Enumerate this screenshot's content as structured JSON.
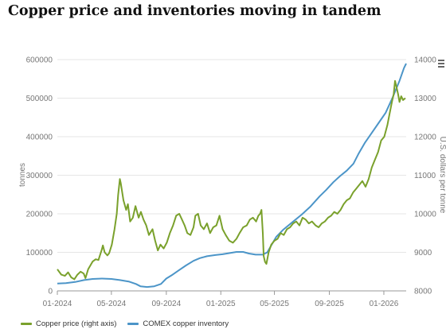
{
  "title": "Copper price and inventories moving in tandem",
  "colors": {
    "price": "#7aa12c",
    "inventory": "#4c95c8",
    "grid": "#e6e6e6",
    "axis_text": "#777777"
  },
  "legend": {
    "price": "Copper price (right axis)",
    "inventory": "COMEX copper inventory"
  },
  "icons": {
    "menu": "hamburger-menu-icon"
  },
  "chart_data": {
    "type": "line",
    "title": "Copper price and inventories moving in tandem",
    "ylabel_left": "tonnes",
    "ylabel_right": "U.S. dollars per tonne",
    "ylim_left": [
      0,
      600000
    ],
    "ylim_right": [
      8000,
      14000
    ],
    "yticks_left": [
      "0",
      "100000",
      "200000",
      "300000",
      "400000",
      "500000",
      "600000"
    ],
    "yticks_right": [
      "8000",
      "9000",
      "10000",
      "11000",
      "12000",
      "13000",
      "14000"
    ],
    "xlim": [
      "2024-01-01",
      "2026-02-20"
    ],
    "xticks": [
      {
        "label": "01-2024",
        "date": "2024-01-01"
      },
      {
        "label": "05-2024",
        "date": "2024-05-01"
      },
      {
        "label": "09-2024",
        "date": "2024-09-01"
      },
      {
        "label": "01-2025",
        "date": "2025-01-01"
      },
      {
        "label": "05-2025",
        "date": "2025-05-01"
      },
      {
        "label": "09-2025",
        "date": "2025-09-01"
      },
      {
        "label": "01-2026",
        "date": "2026-01-01"
      }
    ],
    "grid": true,
    "legend_position": "bottom-left",
    "series": [
      {
        "name": "Copper price (right axis)",
        "axis": "right",
        "points": [
          [
            "2024-01-01",
            8560
          ],
          [
            "2024-01-10",
            8420
          ],
          [
            "2024-01-18",
            8390
          ],
          [
            "2024-01-25",
            8480
          ],
          [
            "2024-02-01",
            8350
          ],
          [
            "2024-02-08",
            8300
          ],
          [
            "2024-02-15",
            8420
          ],
          [
            "2024-02-22",
            8500
          ],
          [
            "2024-02-29",
            8450
          ],
          [
            "2024-03-04",
            8330
          ],
          [
            "2024-03-10",
            8560
          ],
          [
            "2024-03-14",
            8640
          ],
          [
            "2024-03-20",
            8760
          ],
          [
            "2024-03-27",
            8820
          ],
          [
            "2024-04-02",
            8800
          ],
          [
            "2024-04-09",
            9050
          ],
          [
            "2024-04-12",
            9180
          ],
          [
            "2024-04-16",
            9000
          ],
          [
            "2024-04-22",
            8920
          ],
          [
            "2024-04-26",
            8980
          ],
          [
            "2024-05-02",
            9200
          ],
          [
            "2024-05-08",
            9600
          ],
          [
            "2024-05-13",
            10000
          ],
          [
            "2024-05-16",
            10480
          ],
          [
            "2024-05-20",
            10900
          ],
          [
            "2024-05-22",
            10800
          ],
          [
            "2024-05-28",
            10350
          ],
          [
            "2024-06-03",
            10100
          ],
          [
            "2024-06-07",
            10250
          ],
          [
            "2024-06-12",
            9800
          ],
          [
            "2024-06-18",
            9900
          ],
          [
            "2024-06-24",
            10200
          ],
          [
            "2024-07-01",
            9900
          ],
          [
            "2024-07-06",
            10050
          ],
          [
            "2024-07-12",
            9850
          ],
          [
            "2024-07-18",
            9700
          ],
          [
            "2024-07-24",
            9450
          ],
          [
            "2024-08-01",
            9600
          ],
          [
            "2024-08-07",
            9300
          ],
          [
            "2024-08-13",
            9050
          ],
          [
            "2024-08-19",
            9200
          ],
          [
            "2024-08-26",
            9100
          ],
          [
            "2024-09-02",
            9250
          ],
          [
            "2024-09-09",
            9500
          ],
          [
            "2024-09-16",
            9700
          ],
          [
            "2024-09-23",
            9950
          ],
          [
            "2024-09-30",
            10000
          ],
          [
            "2024-10-06",
            9850
          ],
          [
            "2024-10-12",
            9700
          ],
          [
            "2024-10-18",
            9500
          ],
          [
            "2024-10-25",
            9450
          ],
          [
            "2024-11-01",
            9650
          ],
          [
            "2024-11-05",
            9950
          ],
          [
            "2024-11-11",
            10000
          ],
          [
            "2024-11-17",
            9700
          ],
          [
            "2024-11-24",
            9600
          ],
          [
            "2024-12-01",
            9750
          ],
          [
            "2024-12-08",
            9500
          ],
          [
            "2024-12-15",
            9650
          ],
          [
            "2024-12-22",
            9700
          ],
          [
            "2024-12-29",
            9950
          ],
          [
            "2025-01-05",
            9600
          ],
          [
            "2025-01-12",
            9450
          ],
          [
            "2025-01-20",
            9300
          ],
          [
            "2025-01-28",
            9250
          ],
          [
            "2025-02-05",
            9350
          ],
          [
            "2025-02-12",
            9500
          ],
          [
            "2025-02-20",
            9650
          ],
          [
            "2025-02-28",
            9700
          ],
          [
            "2025-03-07",
            9850
          ],
          [
            "2025-03-14",
            9900
          ],
          [
            "2025-03-21",
            9800
          ],
          [
            "2025-03-26",
            9950
          ],
          [
            "2025-03-30",
            10000
          ],
          [
            "2025-04-02",
            10100
          ],
          [
            "2025-04-05",
            9500
          ],
          [
            "2025-04-07",
            8900
          ],
          [
            "2025-04-10",
            8750
          ],
          [
            "2025-04-13",
            8700
          ],
          [
            "2025-04-18",
            9000
          ],
          [
            "2025-04-24",
            9200
          ],
          [
            "2025-05-01",
            9300
          ],
          [
            "2025-05-08",
            9350
          ],
          [
            "2025-05-15",
            9500
          ],
          [
            "2025-05-22",
            9450
          ],
          [
            "2025-05-29",
            9600
          ],
          [
            "2025-06-05",
            9650
          ],
          [
            "2025-06-12",
            9750
          ],
          [
            "2025-06-19",
            9800
          ],
          [
            "2025-06-26",
            9700
          ],
          [
            "2025-07-03",
            9900
          ],
          [
            "2025-07-10",
            9850
          ],
          [
            "2025-07-17",
            9750
          ],
          [
            "2025-07-24",
            9800
          ],
          [
            "2025-08-01",
            9700
          ],
          [
            "2025-08-08",
            9650
          ],
          [
            "2025-08-15",
            9750
          ],
          [
            "2025-08-22",
            9800
          ],
          [
            "2025-08-29",
            9900
          ],
          [
            "2025-09-05",
            9950
          ],
          [
            "2025-09-12",
            10050
          ],
          [
            "2025-09-19",
            10000
          ],
          [
            "2025-09-26",
            10100
          ],
          [
            "2025-10-03",
            10250
          ],
          [
            "2025-10-10",
            10350
          ],
          [
            "2025-10-17",
            10400
          ],
          [
            "2025-10-24",
            10550
          ],
          [
            "2025-10-31",
            10650
          ],
          [
            "2025-11-07",
            10750
          ],
          [
            "2025-11-14",
            10850
          ],
          [
            "2025-11-21",
            10700
          ],
          [
            "2025-11-28",
            10900
          ],
          [
            "2025-12-05",
            11200
          ],
          [
            "2025-12-12",
            11400
          ],
          [
            "2025-12-19",
            11600
          ],
          [
            "2025-12-26",
            11900
          ],
          [
            "2026-01-02",
            12000
          ],
          [
            "2026-01-09",
            12300
          ],
          [
            "2026-01-14",
            12600
          ],
          [
            "2026-01-19",
            12900
          ],
          [
            "2026-01-23",
            13100
          ],
          [
            "2026-01-26",
            13450
          ],
          [
            "2026-01-29",
            13300
          ],
          [
            "2026-02-02",
            13100
          ],
          [
            "2026-02-05",
            12900
          ],
          [
            "2026-02-09",
            13050
          ],
          [
            "2026-02-13",
            12950
          ],
          [
            "2026-02-18",
            13000
          ]
        ]
      },
      {
        "name": "COMEX copper inventory",
        "axis": "left",
        "points": [
          [
            "2024-01-01",
            19000
          ],
          [
            "2024-01-20",
            20000
          ],
          [
            "2024-02-10",
            23000
          ],
          [
            "2024-03-01",
            28000
          ],
          [
            "2024-03-20",
            31000
          ],
          [
            "2024-04-10",
            32000
          ],
          [
            "2024-05-01",
            31000
          ],
          [
            "2024-05-20",
            28000
          ],
          [
            "2024-06-10",
            24000
          ],
          [
            "2024-06-25",
            18000
          ],
          [
            "2024-07-05",
            12000
          ],
          [
            "2024-07-20",
            10000
          ],
          [
            "2024-08-05",
            12000
          ],
          [
            "2024-08-20",
            18000
          ],
          [
            "2024-09-01",
            32000
          ],
          [
            "2024-09-15",
            42000
          ],
          [
            "2024-10-01",
            55000
          ],
          [
            "2024-10-15",
            66000
          ],
          [
            "2024-11-01",
            78000
          ],
          [
            "2024-11-15",
            85000
          ],
          [
            "2024-12-01",
            90000
          ],
          [
            "2024-12-20",
            93000
          ],
          [
            "2025-01-05",
            95000
          ],
          [
            "2025-01-20",
            98000
          ],
          [
            "2025-02-05",
            101000
          ],
          [
            "2025-02-20",
            101000
          ],
          [
            "2025-03-05",
            97000
          ],
          [
            "2025-03-20",
            94000
          ],
          [
            "2025-04-05",
            94000
          ],
          [
            "2025-04-15",
            100000
          ],
          [
            "2025-04-25",
            120000
          ],
          [
            "2025-05-05",
            140000
          ],
          [
            "2025-05-20",
            158000
          ],
          [
            "2025-06-10",
            178000
          ],
          [
            "2025-07-01",
            198000
          ],
          [
            "2025-07-20",
            218000
          ],
          [
            "2025-08-10",
            245000
          ],
          [
            "2025-08-25",
            262000
          ],
          [
            "2025-09-10",
            282000
          ],
          [
            "2025-09-25",
            298000
          ],
          [
            "2025-10-10",
            312000
          ],
          [
            "2025-10-25",
            330000
          ],
          [
            "2025-11-05",
            355000
          ],
          [
            "2025-11-20",
            385000
          ],
          [
            "2025-12-05",
            410000
          ],
          [
            "2025-12-20",
            435000
          ],
          [
            "2026-01-05",
            462000
          ],
          [
            "2026-01-20",
            500000
          ],
          [
            "2026-02-05",
            545000
          ],
          [
            "2026-02-15",
            578000
          ],
          [
            "2026-02-20",
            590000
          ]
        ]
      }
    ]
  }
}
